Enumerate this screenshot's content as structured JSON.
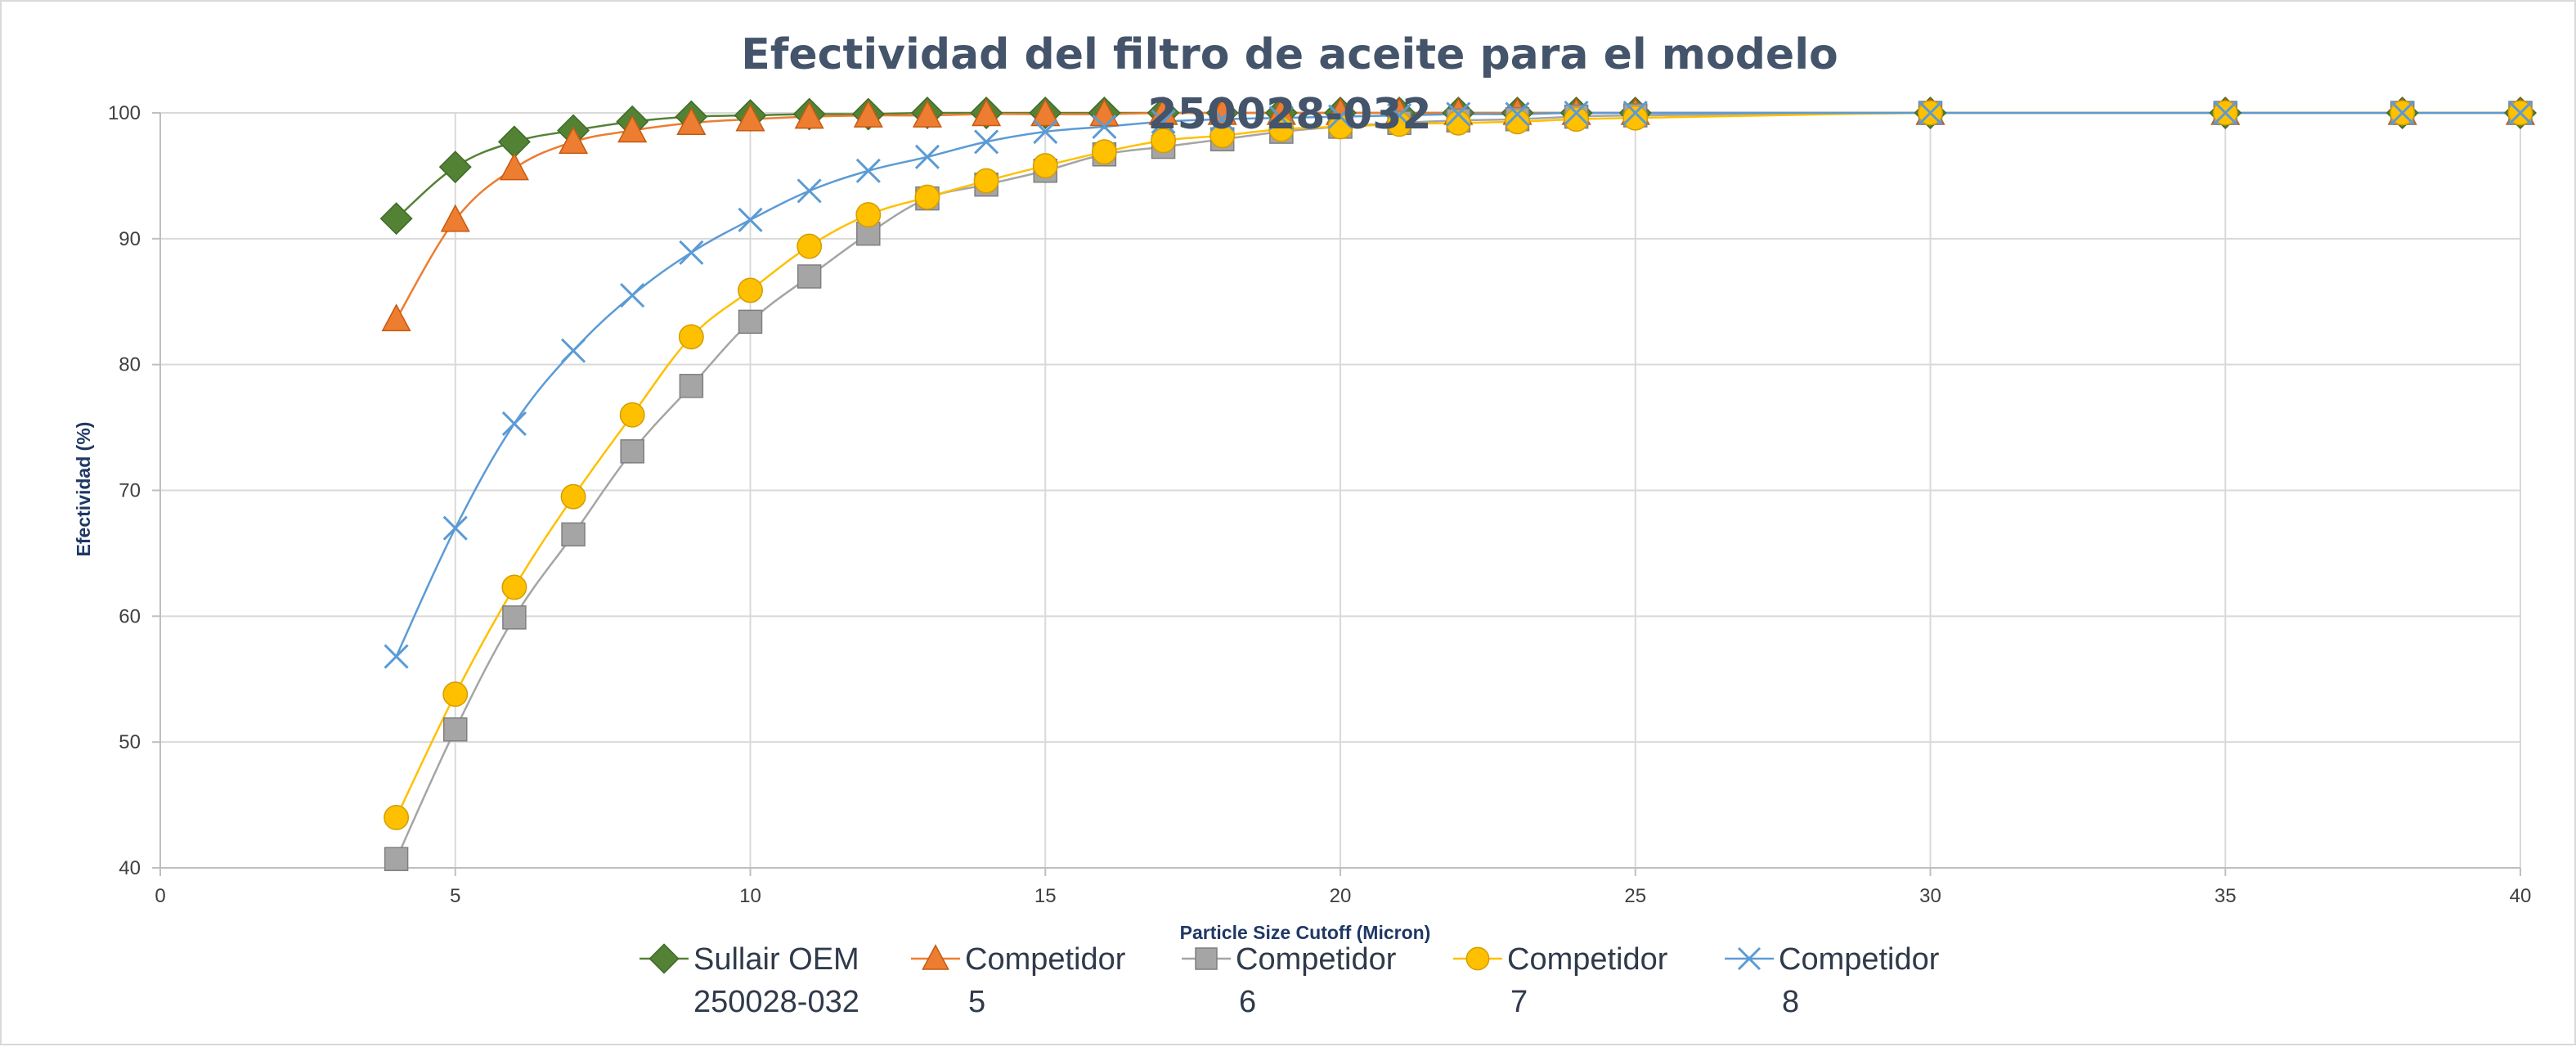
{
  "chart_data": {
    "type": "line",
    "title": [
      "Efectividad del filtro de aceite para el modelo",
      "250028-032"
    ],
    "xlabel": "Particle Size Cutoff (Micron)",
    "ylabel": "Efectividad (%)",
    "xlim": [
      0,
      40
    ],
    "ylim": [
      40,
      100
    ],
    "xticks": [
      0,
      5,
      10,
      15,
      20,
      25,
      30,
      35,
      40
    ],
    "yticks": [
      40,
      50,
      60,
      70,
      80,
      90,
      100
    ],
    "grid": true,
    "legend_position": "bottom",
    "series": [
      {
        "name": [
          "Sullair OEM",
          "250028-032"
        ],
        "color": "#548235",
        "marker": "diamond",
        "x": [
          4,
          5,
          6,
          7,
          8,
          9,
          10,
          11,
          12,
          13,
          14,
          15,
          16,
          17,
          18,
          19,
          20,
          21,
          22,
          23,
          24,
          25,
          30,
          35,
          38,
          40
        ],
        "y": [
          91.6,
          95.7,
          97.7,
          98.6,
          99.3,
          99.7,
          99.8,
          99.9,
          99.9,
          100,
          100,
          100,
          100,
          100,
          100,
          100,
          100,
          100,
          100,
          100,
          100,
          100,
          100,
          100,
          100,
          100
        ]
      },
      {
        "name": [
          "Competidor",
          "5"
        ],
        "color": "#ed7d31",
        "marker": "triangle",
        "x": [
          4,
          5,
          6,
          7,
          8,
          9,
          10,
          11,
          12,
          13,
          14,
          15,
          16,
          17,
          18,
          19,
          20,
          21,
          22,
          23,
          24,
          25,
          30,
          35,
          38,
          40
        ],
        "y": [
          83.6,
          91.5,
          95.6,
          97.7,
          98.6,
          99.2,
          99.5,
          99.7,
          99.8,
          99.8,
          99.9,
          99.9,
          99.9,
          100,
          100,
          100,
          100,
          100,
          100,
          100,
          100,
          100,
          100,
          100,
          100,
          100
        ]
      },
      {
        "name": [
          "Competidor",
          "6"
        ],
        "color": "#a5a5a5",
        "marker": "square",
        "x": [
          4,
          5,
          6,
          7,
          8,
          9,
          10,
          11,
          12,
          13,
          14,
          15,
          16,
          17,
          18,
          19,
          20,
          21,
          22,
          23,
          24,
          25,
          30,
          35,
          38,
          40
        ],
        "y": [
          40.7,
          51,
          59.9,
          66.5,
          73.1,
          78.3,
          83.4,
          87,
          90.4,
          93.2,
          94.3,
          95.4,
          96.7,
          97.3,
          97.9,
          98.5,
          98.9,
          99.2,
          99.4,
          99.5,
          99.7,
          99.8,
          100,
          100,
          100,
          100
        ]
      },
      {
        "name": [
          "Competidor",
          "7"
        ],
        "color": "#ffc000",
        "marker": "circle",
        "x": [
          4,
          5,
          6,
          7,
          8,
          9,
          10,
          11,
          12,
          13,
          14,
          15,
          16,
          17,
          18,
          19,
          20,
          21,
          22,
          23,
          24,
          25,
          30,
          35,
          38,
          40
        ],
        "y": [
          44,
          53.8,
          62.3,
          69.5,
          76,
          82.2,
          85.9,
          89.4,
          91.9,
          93.3,
          94.6,
          95.8,
          96.9,
          97.8,
          98.2,
          98.7,
          98.9,
          99.1,
          99.2,
          99.3,
          99.5,
          99.6,
          100,
          100,
          100,
          100
        ]
      },
      {
        "name": [
          "Competidor",
          "8"
        ],
        "color": "#5b9bd5",
        "marker": "x",
        "x": [
          4,
          5,
          6,
          7,
          8,
          9,
          10,
          11,
          12,
          13,
          14,
          15,
          16,
          17,
          18,
          19,
          20,
          21,
          22,
          23,
          24,
          25,
          30,
          35,
          38,
          40
        ],
        "y": [
          56.8,
          67,
          75.3,
          81.1,
          85.5,
          88.9,
          91.5,
          93.8,
          95.4,
          96.5,
          97.7,
          98.5,
          98.9,
          99.3,
          99.5,
          99.6,
          99.7,
          99.8,
          99.9,
          99.9,
          100,
          100,
          100,
          100,
          100,
          100
        ]
      }
    ]
  }
}
